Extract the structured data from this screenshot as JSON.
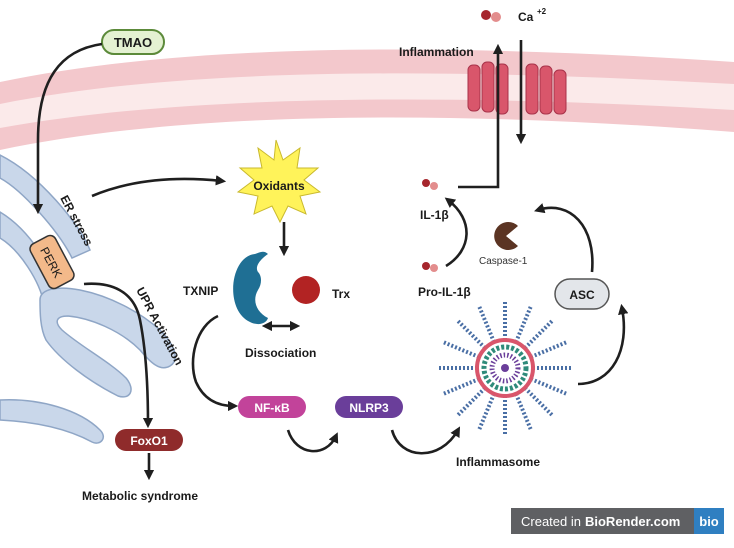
{
  "labels": {
    "tmao": "TMAO",
    "calcium": "Ca",
    "calcium_charge": "+2",
    "inflammation": "Inflammation",
    "er_stress": "ER stress",
    "oxidants": "Oxidants",
    "perk": "PERK",
    "il1b": "IL-1β",
    "caspase1": "Caspase-1",
    "txnip": "TXNIP",
    "trx": "Trx",
    "pro_il1b": "Pro-IL-1β",
    "asc": "ASC",
    "upr_activation": "UPR Activation",
    "dissociation": "Dissociation",
    "nfkb": "NF-κB",
    "nlrp3": "NLRP3",
    "foxo1": "FoxO1",
    "inflammasome": "Inflammasome",
    "metabolic_syndrome": "Metabolic syndrome"
  },
  "badge": {
    "prefix": "Created in",
    "brand": "BioRender.com",
    "logo": "bio"
  },
  "colors": {
    "membrane": "#f3c8cc",
    "membrane_core": "#fbeaea",
    "er": "#c9d7ea",
    "er_stroke": "#8fa6c6",
    "tmao_fill": "#e4f1d2",
    "tmao_stroke": "#5c8a3a",
    "perk": "#f3b98a",
    "foxo1": "#8f2b2b",
    "nfkb": "#c2439a",
    "nlrp3": "#6a3e9a",
    "txnip": "#1f6f94",
    "trx": "#b22323",
    "channel": "#d9566b",
    "oxidants_burst": "#fff35a",
    "asc": "#e3e6ea",
    "caspase": "#5b3423",
    "badge_logo": "#2f7fc1"
  },
  "icons": [
    "calcium-ion-icon",
    "calcium-channel-icon",
    "oxidant-burst-icon",
    "txnip-protein-icon",
    "trx-protein-icon",
    "il1b-cytokine-icon",
    "caspase-1-icon",
    "inflammasome-complex-icon"
  ]
}
